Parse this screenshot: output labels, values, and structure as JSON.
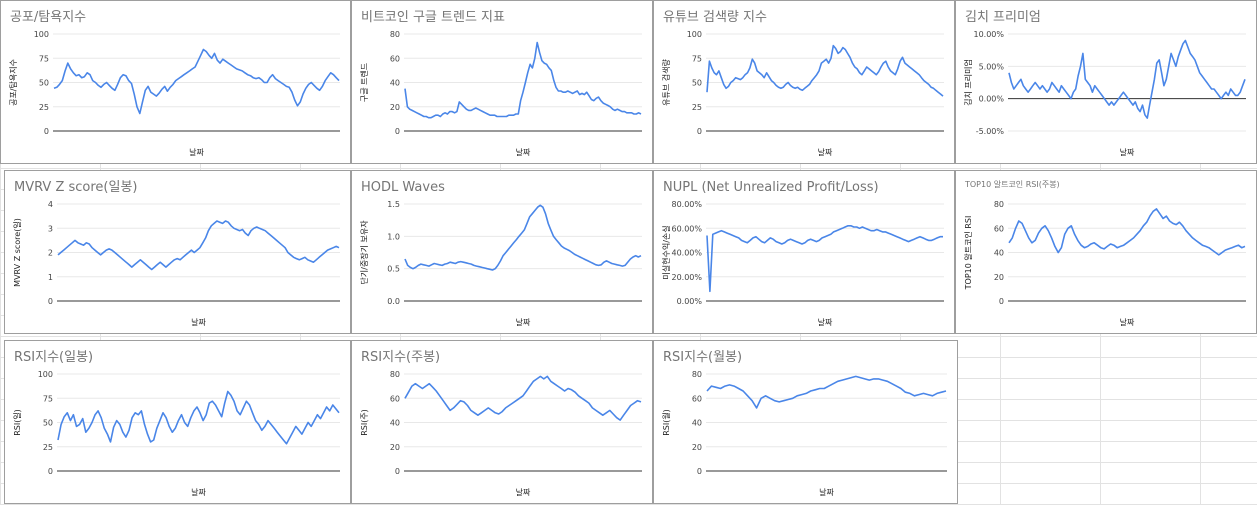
{
  "colors": {
    "series": "#4a86e8",
    "title": "#757575",
    "panel_border": "#9e9e9e"
  },
  "chart_data": [
    {
      "id": "fear-greed",
      "type": "line",
      "title": "공포/탐욕지수",
      "xlabel": "날짜",
      "ylabel": "공포/탐욕지수",
      "yticks": [
        "0",
        "25",
        "50",
        "75",
        "100"
      ],
      "ylim": [
        0,
        100
      ],
      "series": [
        {
          "values": [
            44,
            45,
            48,
            52,
            62,
            70,
            64,
            60,
            57,
            58,
            55,
            56,
            60,
            58,
            52,
            50,
            47,
            45,
            48,
            50,
            47,
            44,
            42,
            48,
            55,
            58,
            57,
            52,
            49,
            38,
            25,
            18,
            30,
            42,
            46,
            40,
            38,
            36,
            39,
            43,
            46,
            41,
            45,
            48,
            52,
            54,
            56,
            58,
            60,
            62,
            64,
            66,
            72,
            78,
            84,
            82,
            78,
            75,
            80,
            73,
            70,
            74,
            72,
            70,
            68,
            66,
            64,
            63,
            62,
            60,
            58,
            57,
            55,
            54,
            55,
            53,
            50,
            50,
            55,
            58,
            54,
            52,
            50,
            48,
            46,
            45,
            40,
            32,
            26,
            30,
            38,
            44,
            48,
            50,
            47,
            44,
            42,
            46,
            52,
            56,
            60,
            58,
            55,
            52
          ]
        }
      ]
    },
    {
      "id": "google-trends",
      "type": "line",
      "title": "비트코인 구글 트렌드 지표",
      "xlabel": "날짜",
      "ylabel": "구글 트렌드",
      "yticks": [
        "0",
        "20",
        "40",
        "60",
        "80"
      ],
      "ylim": [
        0,
        80
      ],
      "series": [
        {
          "values": [
            35,
            20,
            18,
            17,
            16,
            15,
            14,
            13,
            12,
            12,
            11,
            11,
            12,
            13,
            13,
            12,
            14,
            15,
            14,
            16,
            16,
            15,
            16,
            24,
            22,
            20,
            18,
            17,
            17,
            18,
            19,
            18,
            17,
            16,
            15,
            14,
            13,
            13,
            13,
            12,
            12,
            12,
            12,
            12,
            13,
            13,
            13,
            14,
            14,
            25,
            32,
            40,
            48,
            55,
            52,
            60,
            73,
            65,
            58,
            56,
            55,
            52,
            50,
            42,
            36,
            33,
            33,
            32,
            32,
            33,
            32,
            31,
            32,
            33,
            30,
            31,
            30,
            32,
            29,
            26,
            25,
            27,
            28,
            25,
            23,
            22,
            21,
            20,
            18,
            17,
            18,
            17,
            16,
            16,
            15,
            15,
            15,
            14,
            14,
            15,
            14
          ]
        }
      ]
    },
    {
      "id": "youtube",
      "type": "line",
      "title": "유튜브 검색량 지수",
      "xlabel": "날짜",
      "ylabel": "유튜브 검색량",
      "yticks": [
        "0",
        "25",
        "50",
        "75",
        "100"
      ],
      "ylim": [
        0,
        100
      ],
      "series": [
        {
          "values": [
            40,
            72,
            65,
            60,
            58,
            62,
            55,
            48,
            44,
            46,
            50,
            52,
            55,
            54,
            53,
            55,
            58,
            60,
            65,
            74,
            70,
            62,
            60,
            58,
            55,
            60,
            56,
            52,
            50,
            47,
            45,
            44,
            45,
            48,
            50,
            47,
            45,
            44,
            45,
            43,
            42,
            44,
            46,
            48,
            52,
            55,
            58,
            62,
            70,
            72,
            74,
            70,
            75,
            88,
            85,
            80,
            82,
            86,
            84,
            80,
            76,
            70,
            66,
            64,
            60,
            58,
            62,
            66,
            64,
            62,
            60,
            58,
            61,
            66,
            70,
            72,
            66,
            62,
            60,
            58,
            64,
            72,
            76,
            70,
            68,
            66,
            64,
            62,
            60,
            58,
            55,
            52,
            50,
            48,
            45,
            44,
            42,
            40,
            38,
            36
          ]
        }
      ]
    },
    {
      "id": "kimchi",
      "type": "line",
      "title": "김치 프리미엄",
      "xlabel": "날짜",
      "ylabel": "김치 프리미엄",
      "yticks": [
        "-5.00%",
        "0.00%",
        "5.00%",
        "10.00%"
      ],
      "ylim": [
        -5,
        10
      ],
      "series": [
        {
          "values": [
            4.0,
            2.5,
            1.5,
            2.0,
            2.5,
            3.0,
            2.0,
            1.5,
            1.0,
            1.5,
            2.0,
            2.5,
            2.0,
            1.5,
            2.0,
            1.5,
            1.0,
            1.5,
            2.5,
            2.0,
            1.5,
            1.0,
            2.0,
            1.5,
            1.0,
            0.5,
            0.0,
            1.0,
            1.5,
            3.5,
            5.0,
            7.0,
            3.0,
            2.5,
            2.0,
            1.0,
            2.0,
            1.5,
            1.0,
            0.5,
            0.0,
            -0.5,
            -1.0,
            -0.5,
            -1.0,
            -0.5,
            0.0,
            0.5,
            1.0,
            0.5,
            0.0,
            -0.5,
            -1.0,
            -0.5,
            -1.5,
            -2.0,
            -1.0,
            -2.5,
            -3.0,
            -1.0,
            1.0,
            3.0,
            5.5,
            6.0,
            4.0,
            2.0,
            3.0,
            5.0,
            7.0,
            6.0,
            5.0,
            6.5,
            7.5,
            8.5,
            9.0,
            8.0,
            7.0,
            6.5,
            6.0,
            5.0,
            4.0,
            3.5,
            3.0,
            2.5,
            2.0,
            1.5,
            1.5,
            1.0,
            0.5,
            0.0,
            0.5,
            1.0,
            0.5,
            1.5,
            1.0,
            0.5,
            0.5,
            1.0,
            2.0,
            3.0
          ]
        }
      ]
    },
    {
      "id": "mvrv",
      "type": "line",
      "title": "MVRV Z score(일봉)",
      "xlabel": "날짜",
      "ylabel": "MVRV Z score(일)",
      "yticks": [
        "0",
        "1",
        "2",
        "3",
        "4"
      ],
      "ylim": [
        0,
        4
      ],
      "series": [
        {
          "values": [
            1.9,
            2.0,
            2.1,
            2.2,
            2.3,
            2.4,
            2.5,
            2.4,
            2.35,
            2.3,
            2.4,
            2.35,
            2.2,
            2.1,
            2.0,
            1.9,
            2.0,
            2.1,
            2.15,
            2.1,
            2.0,
            1.9,
            1.8,
            1.7,
            1.6,
            1.5,
            1.4,
            1.5,
            1.6,
            1.7,
            1.6,
            1.5,
            1.4,
            1.3,
            1.4,
            1.5,
            1.6,
            1.5,
            1.4,
            1.5,
            1.6,
            1.7,
            1.75,
            1.7,
            1.8,
            1.9,
            2.0,
            2.1,
            2.0,
            2.1,
            2.2,
            2.4,
            2.6,
            2.9,
            3.1,
            3.2,
            3.3,
            3.25,
            3.2,
            3.3,
            3.25,
            3.1,
            3.0,
            2.95,
            2.9,
            2.95,
            2.8,
            2.7,
            2.9,
            3.0,
            3.05,
            3.0,
            2.95,
            2.9,
            2.8,
            2.7,
            2.6,
            2.5,
            2.4,
            2.3,
            2.2,
            2.0,
            1.9,
            1.8,
            1.75,
            1.7,
            1.75,
            1.8,
            1.7,
            1.65,
            1.6,
            1.7,
            1.8,
            1.9,
            2.0,
            2.1,
            2.15,
            2.2,
            2.25,
            2.2
          ]
        }
      ]
    },
    {
      "id": "hodl",
      "type": "line",
      "title": "HODL Waves",
      "xlabel": "날짜",
      "ylabel": "단기/중장기 보유자",
      "yticks": [
        "0.0",
        "0.5",
        "1.0",
        "1.5"
      ],
      "ylim": [
        0,
        1.5
      ],
      "series": [
        {
          "values": [
            0.65,
            0.55,
            0.52,
            0.5,
            0.52,
            0.55,
            0.57,
            0.56,
            0.55,
            0.54,
            0.56,
            0.58,
            0.57,
            0.56,
            0.55,
            0.57,
            0.58,
            0.6,
            0.59,
            0.58,
            0.6,
            0.61,
            0.6,
            0.59,
            0.58,
            0.57,
            0.55,
            0.54,
            0.53,
            0.52,
            0.51,
            0.5,
            0.49,
            0.48,
            0.5,
            0.55,
            0.62,
            0.7,
            0.75,
            0.8,
            0.85,
            0.9,
            0.95,
            1.0,
            1.05,
            1.1,
            1.2,
            1.3,
            1.35,
            1.4,
            1.45,
            1.48,
            1.45,
            1.35,
            1.2,
            1.1,
            1.0,
            0.95,
            0.9,
            0.85,
            0.82,
            0.8,
            0.78,
            0.75,
            0.72,
            0.7,
            0.68,
            0.66,
            0.64,
            0.62,
            0.6,
            0.58,
            0.56,
            0.55,
            0.56,
            0.6,
            0.62,
            0.6,
            0.58,
            0.57,
            0.56,
            0.55,
            0.54,
            0.55,
            0.6,
            0.65,
            0.68,
            0.7,
            0.68,
            0.7
          ]
        }
      ]
    },
    {
      "id": "nupl",
      "type": "line",
      "title": "NUPL (Net Unrealized Profit/Loss)",
      "xlabel": "날짜",
      "ylabel": "미실현수익/손실",
      "yticks": [
        "0.00%",
        "20.00%",
        "40.00%",
        "60.00%",
        "80.00%"
      ],
      "ylim": [
        0,
        80
      ],
      "series": [
        {
          "values": [
            54,
            8,
            55,
            56,
            57,
            58,
            57,
            56,
            55,
            54,
            53,
            52,
            50,
            49,
            48,
            50,
            52,
            53,
            51,
            49,
            48,
            50,
            52,
            51,
            49,
            48,
            47,
            48,
            50,
            51,
            50,
            49,
            48,
            47,
            48,
            50,
            51,
            50,
            49,
            50,
            52,
            53,
            54,
            55,
            57,
            58,
            59,
            60,
            61,
            62,
            62,
            61,
            61,
            60,
            61,
            60,
            59,
            58,
            58,
            59,
            58,
            57,
            57,
            56,
            55,
            54,
            53,
            52,
            51,
            50,
            49,
            50,
            51,
            52,
            53,
            52,
            51,
            50,
            50,
            51,
            52,
            53,
            53
          ]
        }
      ]
    },
    {
      "id": "altcoin-rsi",
      "type": "line",
      "title": "TOP10 알트코인 RSI(주봉)",
      "xlabel": "날짜",
      "ylabel": "TOP10 알트코인 RSI",
      "yticks": [
        "0",
        "20",
        "40",
        "60",
        "80"
      ],
      "ylim": [
        0,
        80
      ],
      "series": [
        {
          "values": [
            48,
            52,
            60,
            66,
            64,
            58,
            52,
            48,
            50,
            56,
            60,
            62,
            58,
            52,
            45,
            40,
            44,
            55,
            60,
            62,
            55,
            50,
            46,
            44,
            45,
            47,
            48,
            46,
            44,
            43,
            45,
            47,
            46,
            44,
            45,
            46,
            48,
            50,
            52,
            55,
            58,
            62,
            65,
            70,
            74,
            76,
            72,
            68,
            70,
            66,
            64,
            63,
            65,
            62,
            58,
            55,
            52,
            50,
            48,
            46,
            45,
            44,
            42,
            40,
            38,
            40,
            42,
            43,
            44,
            45,
            46,
            44,
            45
          ]
        }
      ]
    },
    {
      "id": "rsi-daily",
      "type": "line",
      "title": "RSI지수(일봉)",
      "xlabel": "날짜",
      "ylabel": "RSI(일)",
      "yticks": [
        "0",
        "25",
        "50",
        "75",
        "100"
      ],
      "ylim": [
        0,
        100
      ],
      "series": [
        {
          "values": [
            32,
            48,
            56,
            60,
            52,
            58,
            46,
            48,
            54,
            40,
            44,
            50,
            58,
            62,
            55,
            44,
            38,
            30,
            45,
            52,
            48,
            40,
            35,
            42,
            55,
            60,
            58,
            62,
            48,
            38,
            30,
            32,
            44,
            52,
            60,
            55,
            46,
            40,
            44,
            52,
            58,
            50,
            46,
            55,
            62,
            66,
            60,
            52,
            58,
            70,
            72,
            68,
            62,
            56,
            70,
            82,
            78,
            72,
            62,
            58,
            65,
            72,
            68,
            60,
            52,
            48,
            42,
            46,
            52,
            48,
            44,
            40,
            36,
            32,
            28,
            34,
            40,
            46,
            42,
            38,
            44,
            50,
            46,
            52,
            58,
            54,
            60,
            66,
            62,
            68,
            64,
            60
          ]
        }
      ]
    },
    {
      "id": "rsi-weekly",
      "type": "line",
      "title": "RSI지수(주봉)",
      "xlabel": "날짜",
      "ylabel": "RSI(주)",
      "yticks": [
        "0",
        "20",
        "40",
        "60",
        "80"
      ],
      "ylim": [
        0,
        80
      ],
      "series": [
        {
          "values": [
            60,
            65,
            70,
            72,
            70,
            68,
            70,
            72,
            69,
            66,
            62,
            58,
            54,
            50,
            52,
            55,
            58,
            57,
            54,
            50,
            48,
            46,
            48,
            50,
            52,
            50,
            48,
            47,
            49,
            52,
            54,
            56,
            58,
            60,
            62,
            66,
            70,
            74,
            76,
            78,
            76,
            78,
            74,
            72,
            70,
            68,
            66,
            68,
            67,
            65,
            62,
            60,
            58,
            56,
            52,
            50,
            48,
            46,
            48,
            50,
            47,
            44,
            42,
            46,
            50,
            54,
            56,
            58,
            57
          ]
        }
      ]
    },
    {
      "id": "rsi-monthly",
      "type": "line",
      "title": "RSI지수(월봉)",
      "xlabel": "날짜",
      "ylabel": "RSI(월)",
      "yticks": [
        "0",
        "20",
        "40",
        "60",
        "80"
      ],
      "ylim": [
        0,
        80
      ],
      "series": [
        {
          "values": [
            66,
            70,
            69,
            68,
            70,
            71,
            70,
            68,
            66,
            62,
            58,
            52,
            60,
            62,
            60,
            58,
            57,
            58,
            59,
            60,
            62,
            63,
            64,
            66,
            67,
            68,
            68,
            70,
            72,
            74,
            75,
            76,
            77,
            78,
            77,
            76,
            75,
            76,
            76,
            75,
            74,
            72,
            70,
            68,
            65,
            64,
            62,
            63,
            64,
            63,
            62,
            64,
            65,
            66
          ]
        }
      ]
    }
  ]
}
